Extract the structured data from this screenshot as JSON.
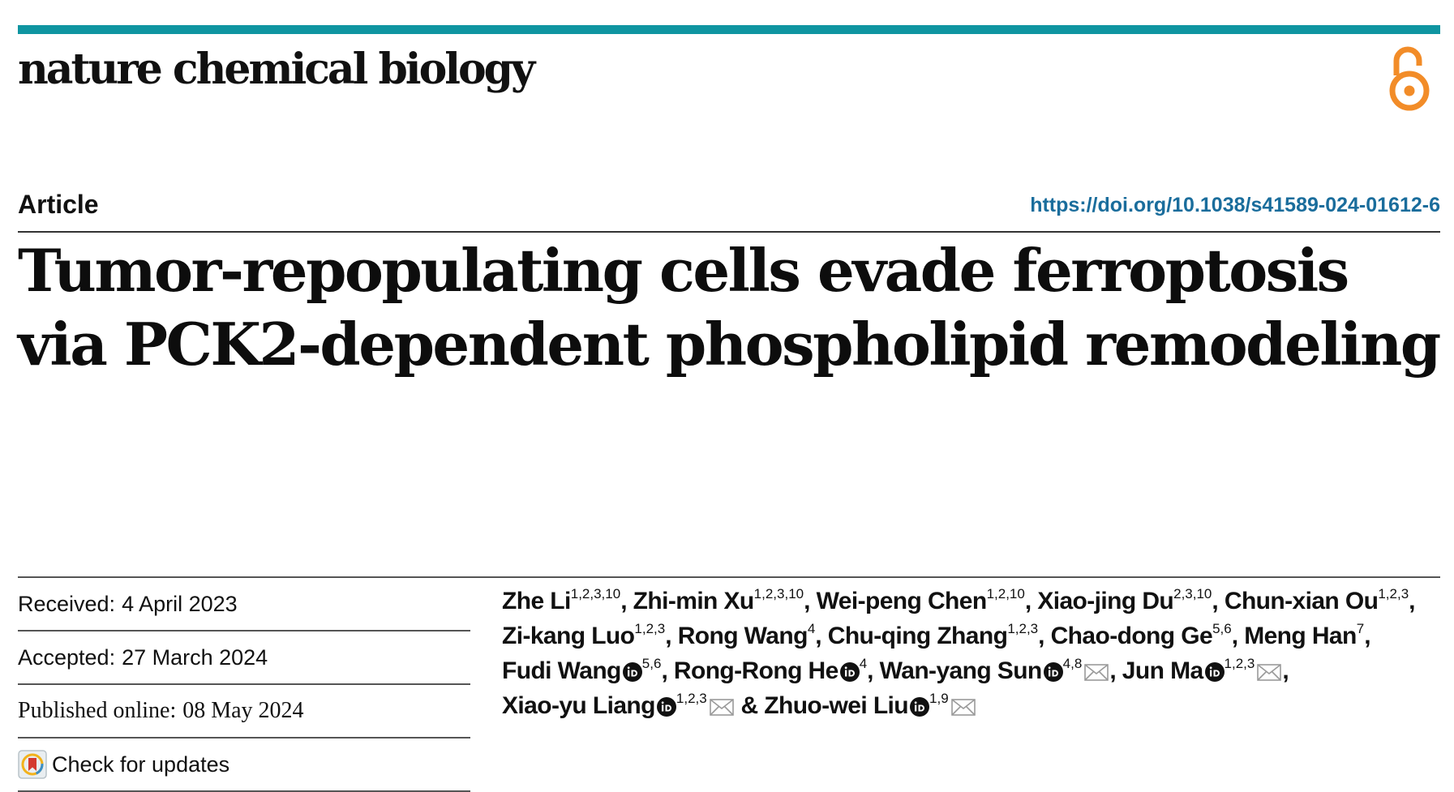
{
  "header": {
    "journal": "nature chemical biology",
    "accent_color": "#0f95a1",
    "open_access_icon": "open-access-lock-icon",
    "open_access_color": "#f28c28"
  },
  "article": {
    "type": "Article",
    "doi": "https://doi.org/10.1038/s41589-024-01612-6",
    "title": "Tumor-repopulating cells evade ferroptosis via PCK2-dependent phospholipid remodeling"
  },
  "meta": {
    "received_label": "Received:",
    "received": "4 April 2023",
    "accepted_label": "Accepted:",
    "accepted": "27 March 2024",
    "published_label": "Published online:",
    "published": "08 May 2024",
    "check_updates": "Check for updates"
  },
  "authors": [
    {
      "name": "Zhe Li",
      "aff": "1,2,3,10",
      "sep": ", "
    },
    {
      "name": "Zhi-min Xu",
      "aff": "1,2,3,10",
      "sep": ", "
    },
    {
      "name": "Wei-peng Chen",
      "aff": "1,2,10",
      "sep": ", "
    },
    {
      "name": "Xiao-jing Du",
      "aff": "2,3,10",
      "sep": ", "
    },
    {
      "name": "Chun-xian Ou",
      "aff": "1,2,3",
      "sep": ", "
    },
    {
      "name": "Zi-kang Luo",
      "aff": "1,2,3",
      "sep": ", "
    },
    {
      "name": "Rong Wang",
      "aff": "4",
      "sep": ", "
    },
    {
      "name": "Chu-qing Zhang",
      "aff": "1,2,3",
      "sep": ", "
    },
    {
      "name": "Chao-dong Ge",
      "aff": "5,6",
      "sep": ", "
    },
    {
      "name": "Meng Han",
      "aff": "7",
      "sep": ", "
    },
    {
      "name": "Fudi Wang",
      "aff": "5,6",
      "sep": ", "
    },
    {
      "name": "Rong-Rong He",
      "aff": "4",
      "sep": ", "
    },
    {
      "name": "Wan-yang Sun",
      "aff": "4,8",
      "sep": ", "
    },
    {
      "name": "Jun Ma",
      "aff": "1,2,3",
      "sep": ", "
    },
    {
      "name": "Xiao-yu Liang",
      "aff": "1,2,3",
      "sep": " & "
    },
    {
      "name": "Zhuo-wei Liu",
      "aff": "1,9",
      "sep": ""
    }
  ]
}
